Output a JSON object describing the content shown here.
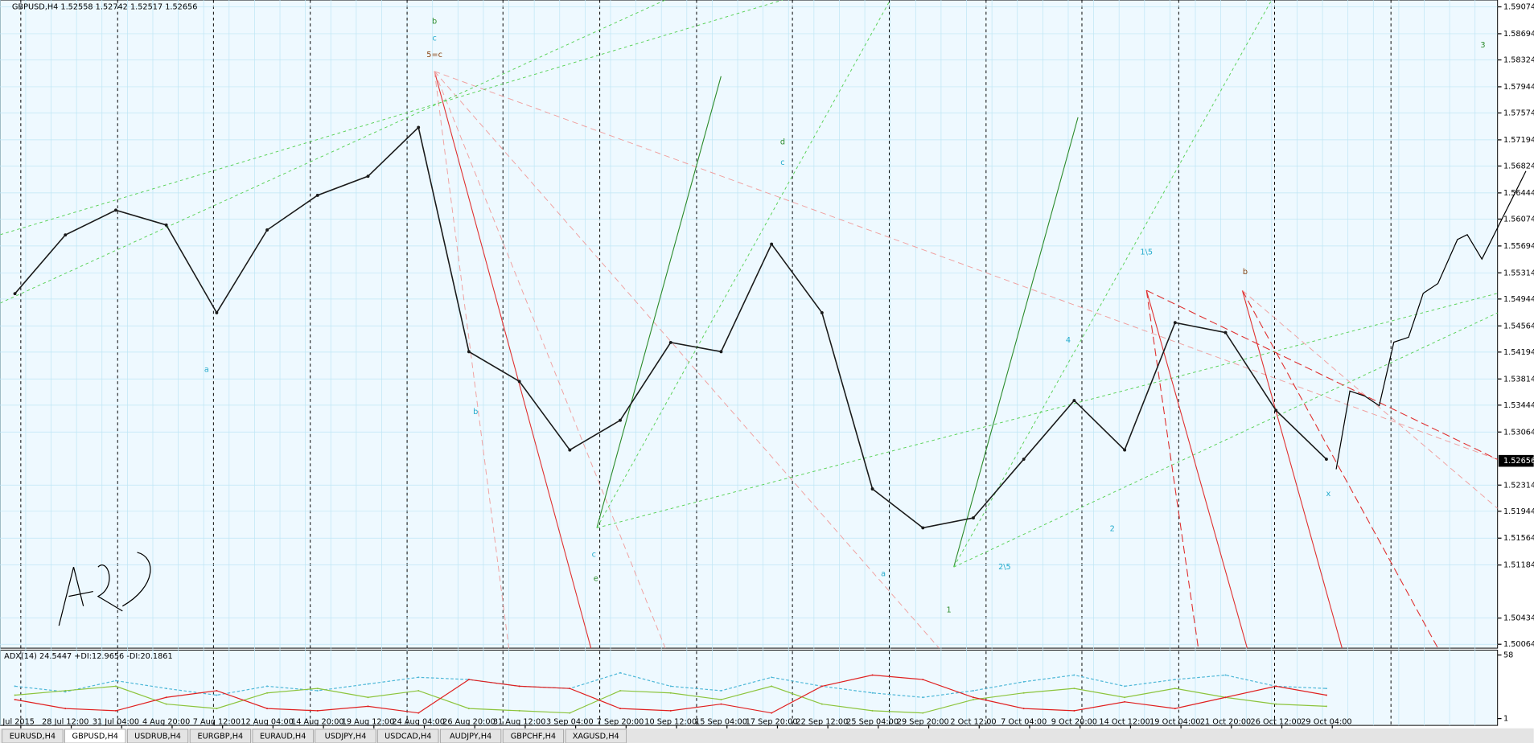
{
  "chart_data": [
    {
      "type": "line",
      "title": "GBPUSD,H4  1.52558 1.52742 1.52517 1.52656",
      "categories": [
        "3 Jul 2015",
        "28 Jul 12:00",
        "31 Jul 04:00",
        "4 Aug 20:00",
        "7 Aug 12:00",
        "12 Aug 04:00",
        "14 Aug 20:00",
        "19 Aug 12:00",
        "24 Aug 04:00",
        "26 Aug 20:00",
        "31 Aug 12:00",
        "3 Sep 04:00",
        "7 Sep 20:00",
        "10 Sep 12:00",
        "15 Sep 04:00",
        "17 Sep 20:00",
        "22 Sep 12:00",
        "25 Sep 04:00",
        "29 Sep 20:00",
        "2 Oct 12:00",
        "7 Oct 04:00",
        "9 Oct 20:00",
        "14 Oct 12:00",
        "19 Oct 04:00",
        "21 Oct 20:00",
        "26 Oct 12:00",
        "29 Oct 04:00"
      ],
      "values": [
        1.5502,
        1.5585,
        1.562,
        1.5599,
        1.5475,
        1.5592,
        1.5641,
        1.5668,
        1.5737,
        1.542,
        1.5378,
        1.5281,
        1.5323,
        1.5433,
        1.542,
        1.5572,
        1.5475,
        1.5226,
        1.5171,
        1.5185,
        1.5268,
        1.5351,
        1.5281,
        1.5461,
        1.5447,
        1.5337,
        1.5268
      ],
      "color": "#1a1a1a",
      "ylim": [
        1.50064,
        1.59074
      ],
      "yticks": [
        1.59074,
        1.58694,
        1.58324,
        1.57944,
        1.57574,
        1.57194,
        1.56824,
        1.56444,
        1.56074,
        1.55694,
        1.55314,
        1.54944,
        1.54564,
        1.54194,
        1.53814,
        1.53444,
        1.53064,
        1.52314,
        1.51944,
        1.51564,
        1.51184,
        1.50434,
        1.50064
      ],
      "current_price": 1.52656,
      "grid": true,
      "annotations": [
        "b",
        "c",
        "5=c",
        "d",
        "c",
        "1\\5",
        "b",
        "c",
        "e",
        "1",
        "3",
        "4",
        "2",
        "2\\5",
        "x",
        "a",
        "b",
        "a"
      ]
    },
    {
      "type": "line",
      "title": "ADX(14) 24.5447 +DI:12.9656 -DI:20.1861",
      "ylim": [
        1,
        58
      ],
      "yticks": [
        58,
        1
      ],
      "series": [
        {
          "color": "#4fb8d8",
          "values": [
            30,
            25,
            35,
            28,
            22,
            30,
            26,
            32,
            38,
            36,
            30,
            28,
            42,
            30,
            26,
            38,
            30,
            24,
            20,
            26,
            34,
            40,
            30,
            36,
            40,
            30,
            28
          ]
        },
        {
          "color": "#8cc43c",
          "values": [
            22,
            26,
            30,
            14,
            10,
            24,
            28,
            20,
            26,
            10,
            8,
            6,
            26,
            24,
            18,
            30,
            14,
            8,
            6,
            18,
            24,
            28,
            20,
            28,
            20,
            14,
            12
          ]
        },
        {
          "color": "#e02020",
          "values": [
            18,
            10,
            8,
            20,
            26,
            10,
            8,
            12,
            6,
            36,
            30,
            28,
            10,
            8,
            14,
            6,
            30,
            40,
            36,
            20,
            10,
            8,
            16,
            10,
            20,
            30,
            22
          ]
        }
      ]
    },
    {
      "tabs": [
        "EURUSD,H4",
        "GBPUSD,H4",
        "USDRUB,H4",
        "EURGBP,H4",
        "EURAUD,H4",
        "USDJPY,H4",
        "USDCAD,H4",
        "AUDJPY,H4",
        "GBPCHF,H4",
        "XAGUSD,H4"
      ],
      "active": 1
    }
  ]
}
